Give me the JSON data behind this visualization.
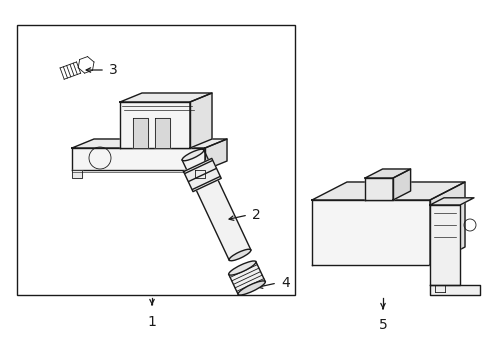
{
  "bg_color": "#ffffff",
  "line_color": "#1a1a1a",
  "line_width": 1.0,
  "thin_line": 0.6,
  "label_fontsize": 9
}
